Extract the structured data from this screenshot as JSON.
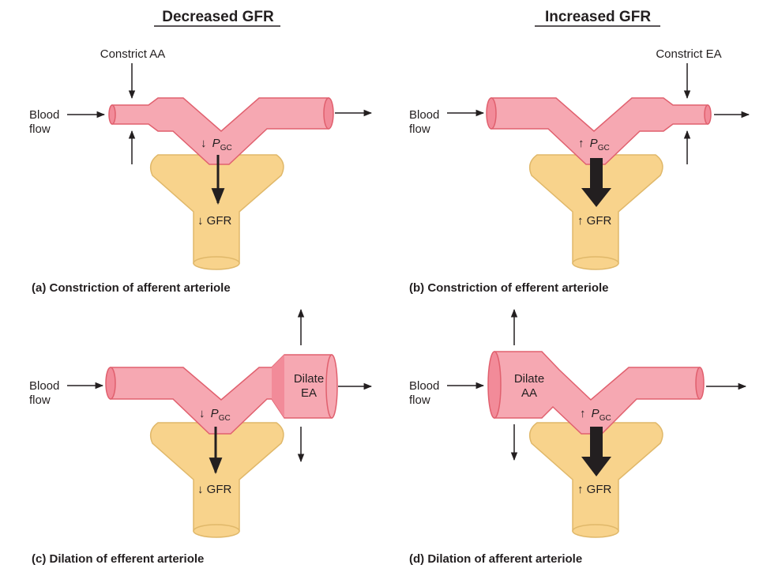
{
  "headings": {
    "left": "Decreased GFR",
    "right": "Increased GFR"
  },
  "colors": {
    "vessel_fill": "#f6a8b2",
    "vessel_dark": "#f28b99",
    "vessel_stroke": "#e0606e",
    "capsule_fill": "#f8d38c",
    "capsule_stroke": "#e0b86a",
    "arrow": "#231f20"
  },
  "panels": {
    "a": {
      "caption": "(a) Constriction of afferent arteriole",
      "top_label": "Constrict AA",
      "blood_1": "Blood",
      "blood_2": "flow",
      "pgc_arrow": "↓",
      "gfr_label": "↓ GFR"
    },
    "b": {
      "caption": "(b) Constriction of efferent arteriole",
      "top_label": "Constrict EA",
      "blood_1": "Blood",
      "blood_2": "flow",
      "pgc_arrow": "↑",
      "gfr_label": "↑ GFR"
    },
    "c": {
      "caption": "(c) Dilation of efferent arteriole",
      "dilate_1": "Dilate",
      "dilate_2": "EA",
      "blood_1": "Blood",
      "blood_2": "flow",
      "pgc_arrow": "↓",
      "gfr_label": "↓ GFR"
    },
    "d": {
      "caption": "(d) Dilation of afferent arteriole",
      "dilate_1": "Dilate",
      "dilate_2": "AA",
      "blood_1": "Blood",
      "blood_2": "flow",
      "pgc_arrow": "↑",
      "gfr_label": "↑ GFR"
    }
  },
  "pgc": {
    "symbol": "P",
    "subscript": "GC"
  }
}
